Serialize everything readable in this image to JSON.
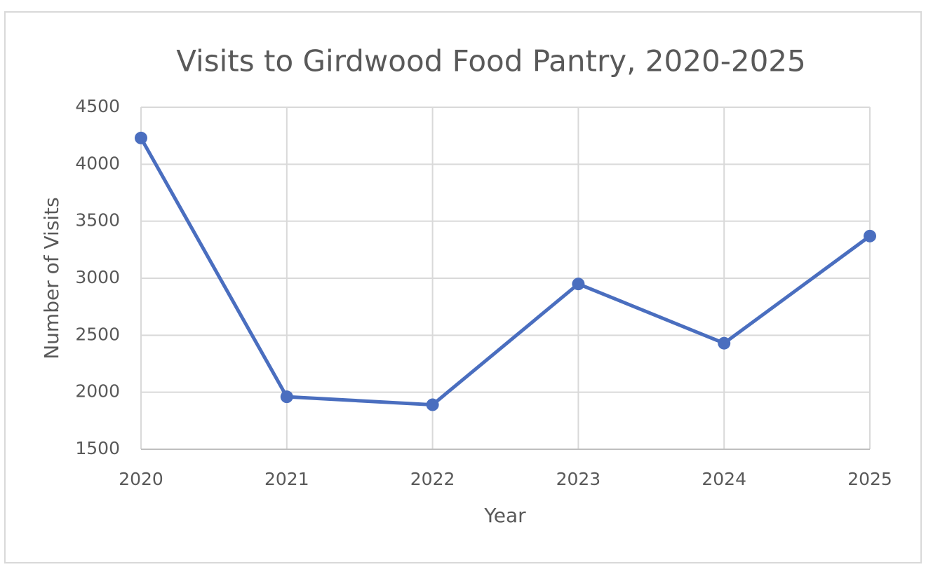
{
  "chart_data": {
    "type": "line",
    "title": "Visits to Girdwood Food Pantry, 2020-2025",
    "x_label": "Year",
    "y_label": "Number of Visits",
    "x": [
      2020,
      2021,
      2022,
      2023,
      2024,
      2025
    ],
    "values": [
      4230,
      1960,
      1890,
      2950,
      2430,
      3370
    ],
    "color": "#4a6ebf",
    "xlim": [
      2020,
      2025
    ],
    "xticks": [
      2020,
      2021,
      2022,
      2023,
      2024,
      2025
    ],
    "ylim": [
      1500,
      4500
    ],
    "yticks": [
      1500,
      2000,
      2500,
      3000,
      3500,
      4000,
      4500
    ],
    "grid": true
  }
}
